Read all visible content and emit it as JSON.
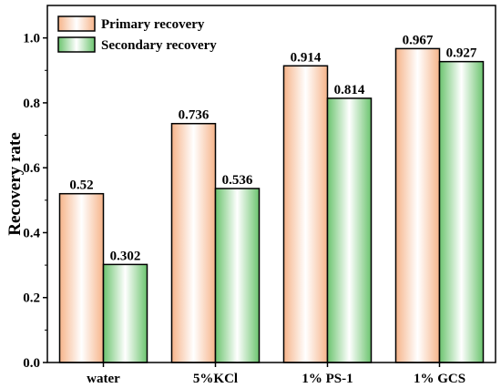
{
  "chart_data": {
    "type": "bar",
    "categories": [
      "water",
      "5%KCl",
      "1% PS-1",
      "1% GCS"
    ],
    "series": [
      {
        "name": "Primary recovery",
        "values": [
          0.52,
          0.736,
          0.914,
          0.967
        ],
        "labels": [
          "0.52",
          "0.736",
          "0.914",
          "0.967"
        ],
        "color": "#f4a460"
      },
      {
        "name": "Secondary recovery",
        "values": [
          0.302,
          0.536,
          0.814,
          0.927
        ],
        "labels": [
          "0.302",
          "0.536",
          "0.814",
          "0.927"
        ],
        "color": "#4caf50"
      }
    ],
    "ylabel": "Recovery rate",
    "xlabel": "",
    "ylim": [
      0.0,
      1.1
    ],
    "yticks": [
      0.0,
      0.2,
      0.4,
      0.6,
      0.8,
      1.0
    ],
    "ytick_labels": [
      "0.0",
      "0.2",
      "0.4",
      "0.6",
      "0.8",
      "1.0"
    ],
    "legend_position": "top-left",
    "grid": false
  }
}
